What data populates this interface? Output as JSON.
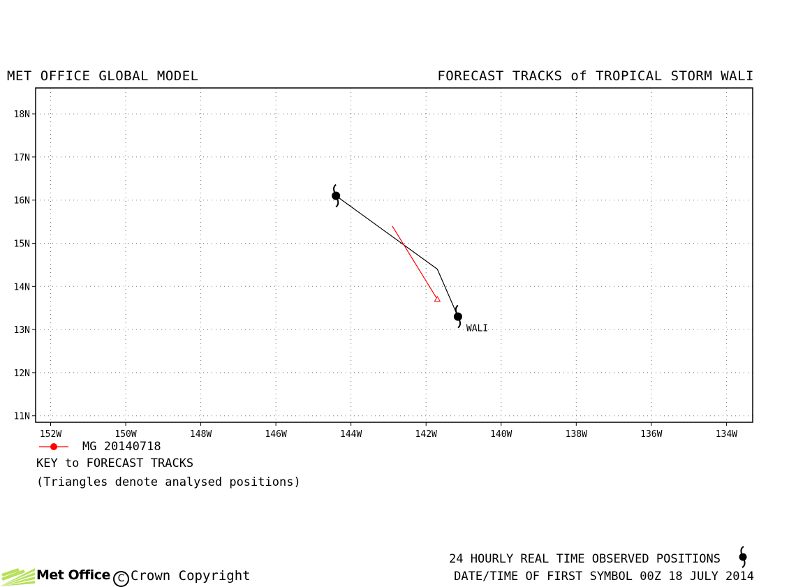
{
  "header": {
    "left_title": "MET OFFICE GLOBAL MODEL",
    "right_title": "FORECAST TRACKS of TROPICAL STORM WALI"
  },
  "chart_data": {
    "type": "map-track",
    "x_ticks": [
      "152W",
      "150W",
      "148W",
      "146W",
      "144W",
      "142W",
      "140W",
      "138W",
      "136W",
      "134W"
    ],
    "y_ticks": [
      "11N",
      "12N",
      "13N",
      "14N",
      "15N",
      "16N",
      "17N",
      "18N"
    ],
    "x_range_lon": [
      -152.4,
      -133.3
    ],
    "y_range_lat": [
      10.85,
      18.6
    ],
    "grid": true,
    "observed_track": {
      "points": [
        {
          "lon": -141.15,
          "lat": 13.3
        },
        {
          "lon": -141.7,
          "lat": 14.4
        },
        {
          "lon": -144.4,
          "lat": 16.1
        }
      ],
      "symbols": [
        {
          "lon": -141.15,
          "lat": 13.3
        },
        {
          "lon": -144.4,
          "lat": 16.1
        }
      ],
      "storm_label": "WALI",
      "color": "#000000"
    },
    "forecast_tracks": [
      {
        "name": "MG 20140718",
        "color": "#ff0000",
        "points": [
          {
            "lon": -141.7,
            "lat": 13.7
          },
          {
            "lon": -142.9,
            "lat": 15.4
          }
        ],
        "analysed_marker": {
          "lon": -141.7,
          "lat": 13.7
        }
      }
    ]
  },
  "legend": {
    "series_label": "MG 20140718",
    "series_color": "#ff0000",
    "key_label": "KEY to FORECAST TRACKS",
    "key_note": "(Triangles denote analysed positions)"
  },
  "footer": {
    "logo_text": "Met Office",
    "copyright": "Crown Copyright",
    "copyright_symbol": "C",
    "observed_note": "24 HOURLY REAL TIME OBSERVED POSITIONS",
    "datetime_note": "DATE/TIME OF FIRST SYMBOL 00Z 18 JULY 2014",
    "cyclone_icon": "cyclone-icon"
  }
}
